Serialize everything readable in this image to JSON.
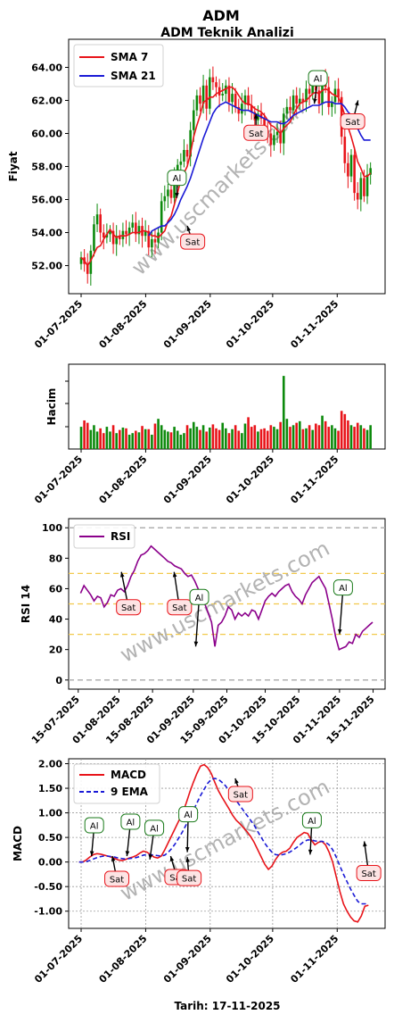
{
  "header": {
    "title": "ADM",
    "subtitle": "ADM Teknik Analizi",
    "footer": "Tarih: 17-11-2025"
  },
  "watermark": "www.uscmarkets.com",
  "colors": {
    "sma7": "#e8141a",
    "sma21": "#1a1ad6",
    "up": "#0d8a0d",
    "down": "#e8141a",
    "rsi": "#8b008b",
    "macd": "#e8141a",
    "ema9": "#1a1ad6",
    "buy_border": "#1a7a1a",
    "sell_border": "#e8141a"
  },
  "chart_data": [
    {
      "type": "line",
      "panel": "price",
      "ylabel": "Fiyat",
      "x_ticks": [
        "01-07-2025",
        "01-08-2025",
        "01-09-2025",
        "01-10-2025",
        "01-11-2025"
      ],
      "y_ticks": [
        "52.00",
        "54.00",
        "56.00",
        "58.00",
        "60.00",
        "62.00",
        "64.00"
      ],
      "ylim": [
        50.3,
        65.7
      ],
      "xlim_days": [
        -6,
        146
      ],
      "legend": [
        "SMA 7",
        "SMA 21"
      ],
      "legend_position": "top-left",
      "close": [
        52.5,
        52.1,
        51.5,
        52.9,
        54.5,
        55.1,
        54.0,
        53.7,
        53.9,
        54.1,
        53.3,
        53.8,
        53.6,
        54.1,
        53.9,
        54.3,
        54.6,
        53.9,
        54.4,
        53.8,
        54.1,
        53.1,
        53.6,
        53.4,
        54.0,
        55.9,
        56.2,
        56.6,
        56.1,
        57.3,
        58.1,
        58.3,
        59.0,
        58.6,
        60.2,
        61.4,
        62.3,
        61.8,
        62.9,
        61.5,
        63.4,
        63.1,
        62.8,
        62.3,
        62.4,
        62.9,
        61.9,
        62.4,
        61.6,
        61.2,
        61.8,
        62.3,
        61.7,
        61.3,
        60.8,
        61.2,
        60.9,
        60.2,
        60.0,
        59.3,
        59.9,
        60.1,
        59.4,
        61.2,
        61.6,
        61.4,
        62.3,
        61.8,
        62.1,
        61.9,
        62.7,
        62.4,
        63.1,
        62.6,
        61.8,
        63.4,
        62.8,
        61.6,
        61.9,
        62.7,
        62.2,
        59.8,
        58.2,
        57.4,
        58.7,
        56.4,
        56.0,
        57.3,
        56.2,
        57.5,
        57.9
      ],
      "series": [
        {
          "name": "SMA 7",
          "values": [
            52.5,
            52.3,
            52.0,
            52.3,
            52.7,
            53.1,
            53.2,
            53.6,
            53.9,
            54.2,
            53.9,
            53.7,
            53.8,
            53.8,
            53.8,
            53.9,
            54.0,
            54.0,
            54.0,
            54.1,
            54.1,
            54.0,
            53.8,
            53.8,
            53.7,
            53.9,
            54.1,
            54.7,
            55.0,
            55.7,
            56.4,
            57.2,
            57.6,
            58.0,
            58.8,
            59.8,
            60.5,
            61.1,
            61.9,
            62.0,
            62.2,
            62.2,
            62.4,
            62.5,
            62.6,
            62.7,
            62.8,
            62.8,
            62.6,
            62.3,
            62.0,
            61.8,
            61.8,
            61.7,
            61.5,
            61.4,
            61.3,
            61.1,
            60.8,
            60.5,
            60.4,
            60.2,
            60.0,
            60.3,
            60.5,
            60.7,
            61.1,
            61.5,
            61.8,
            61.9,
            62.0,
            62.2,
            62.4,
            62.5,
            62.4,
            62.6,
            62.7,
            62.6,
            62.4,
            62.3,
            62.2,
            61.7,
            61.1,
            60.4,
            59.8,
            59.1,
            58.3,
            57.9,
            57.4,
            57.4,
            57.6
          ]
        },
        {
          "name": "SMA 21",
          "values": [
            null,
            null,
            null,
            null,
            null,
            null,
            null,
            null,
            null,
            null,
            null,
            null,
            null,
            null,
            null,
            null,
            null,
            null,
            null,
            null,
            null,
            53.8,
            54.1,
            54.2,
            54.3,
            54.4,
            54.4,
            54.6,
            54.8,
            55.1,
            55.5,
            56.0,
            56.4,
            56.8,
            57.3,
            57.9,
            58.5,
            59.1,
            59.7,
            60.2,
            60.7,
            61.2,
            61.5,
            61.7,
            61.8,
            61.9,
            61.8,
            61.7,
            61.6,
            61.5,
            61.4,
            61.4,
            61.4,
            61.3,
            61.2,
            61.1,
            61.0,
            60.9,
            60.8,
            60.7,
            60.7,
            60.7,
            60.6,
            60.6,
            60.7,
            60.9,
            61.1,
            61.2,
            61.3,
            61.4,
            61.5,
            61.6,
            61.7,
            61.7,
            61.7,
            61.8,
            61.9,
            61.9,
            61.9,
            61.8,
            61.8,
            61.8,
            61.6,
            61.3,
            61.1,
            60.7,
            60.3,
            59.9,
            59.6,
            59.6,
            59.6
          ]
        }
      ],
      "annotations": [
        {
          "text": "Al",
          "x_day": 46,
          "y": 56.1
        },
        {
          "text": "Sat",
          "x_day": 51,
          "y": 54.4
        },
        {
          "text": "Sat",
          "x_day": 84,
          "y": 61.2
        },
        {
          "text": "Al",
          "x_day": 112,
          "y": 61.8
        },
        {
          "text": "Sat",
          "x_day": 133,
          "y": 62.0
        }
      ]
    },
    {
      "type": "bar",
      "panel": "volume",
      "ylabel": "Hacim",
      "x_ticks": [
        "01-07-2025",
        "01-08-2025",
        "01-09-2025",
        "01-10-2025",
        "01-11-2025"
      ],
      "values": [
        0.28,
        0.36,
        0.33,
        0.24,
        0.3,
        0.22,
        0.26,
        0.2,
        0.28,
        0.22,
        0.3,
        0.2,
        0.24,
        0.27,
        0.26,
        0.18,
        0.2,
        0.23,
        0.21,
        0.29,
        0.25,
        0.25,
        0.18,
        0.32,
        0.38,
        0.3,
        0.24,
        0.22,
        0.21,
        0.28,
        0.23,
        0.18,
        0.2,
        0.3,
        0.26,
        0.34,
        0.28,
        0.24,
        0.3,
        0.22,
        0.27,
        0.31,
        0.26,
        0.24,
        0.33,
        0.26,
        0.2,
        0.25,
        0.3,
        0.23,
        0.2,
        0.32,
        0.4,
        0.28,
        0.3,
        0.22,
        0.25,
        0.26,
        0.23,
        0.3,
        0.28,
        0.25,
        0.34,
        0.92,
        0.38,
        0.28,
        0.3,
        0.33,
        0.35,
        0.25,
        0.26,
        0.3,
        0.24,
        0.32,
        0.3,
        0.42,
        0.35,
        0.28,
        0.3,
        0.26,
        0.23,
        0.48,
        0.44,
        0.36,
        0.3,
        0.28,
        0.33,
        0.3,
        0.26,
        0.24,
        0.3
      ]
    },
    {
      "type": "line",
      "panel": "rsi",
      "ylabel": "RSI 14",
      "x_ticks": [
        "15-07-2025",
        "01-08-2025",
        "15-08-2025",
        "01-09-2025",
        "15-09-2025",
        "01-10-2025",
        "15-10-2025",
        "01-11-2025",
        "15-11-2025"
      ],
      "y_ticks": [
        "0",
        "20",
        "40",
        "60",
        "80",
        "100"
      ],
      "ylim": [
        -6,
        106
      ],
      "levels": [
        30,
        50,
        70
      ],
      "legend": [
        "RSI"
      ],
      "legend_position": "top-left",
      "series": [
        {
          "name": "RSI",
          "start_day": 15,
          "values": [
            57,
            62,
            59,
            56,
            52,
            55,
            54,
            48,
            51,
            56,
            55,
            59,
            60,
            58,
            62,
            68,
            72,
            78,
            82,
            83,
            85,
            88,
            86,
            84,
            82,
            80,
            78,
            77,
            75,
            74,
            73,
            70,
            68,
            69,
            65,
            60,
            55,
            50,
            44,
            38,
            22,
            36,
            38,
            42,
            48,
            46,
            40,
            44,
            42,
            44,
            42,
            46,
            45,
            40,
            46,
            52,
            55,
            57,
            55,
            58,
            60,
            62,
            63,
            58,
            55,
            53,
            50,
            56,
            60,
            64,
            66,
            68,
            64,
            60,
            50,
            40,
            28,
            20,
            21,
            22,
            25,
            24,
            30,
            28,
            32,
            34,
            36,
            38
          ]
        }
      ],
      "annotations": [
        {
          "text": "Sat",
          "x_day": 32,
          "y": 71
        },
        {
          "text": "Sat",
          "x_day": 54,
          "y": 71
        },
        {
          "text": "Al",
          "x_day": 63,
          "y": 22
        },
        {
          "text": "Al",
          "x_day": 123,
          "y": 30
        }
      ]
    },
    {
      "type": "line",
      "panel": "macd",
      "ylabel": "MACD",
      "xlabel": "Tarih: 17-11-2025",
      "x_ticks": [
        "01-07-2025",
        "01-08-2025",
        "01-09-2025",
        "01-10-2025",
        "01-11-2025"
      ],
      "y_ticks": [
        "-1.00",
        "-0.50",
        "0.00",
        "0.50",
        "1.00",
        "1.50",
        "2.00"
      ],
      "ylim": [
        -1.35,
        2.1
      ],
      "legend": [
        "MACD",
        "9 EMA"
      ],
      "legend_position": "top-left",
      "series": [
        {
          "name": "MACD",
          "values": [
            0.0,
            0.0,
            0.04,
            0.1,
            0.15,
            0.17,
            0.16,
            0.14,
            0.12,
            0.1,
            0.07,
            0.04,
            0.03,
            0.05,
            0.08,
            0.1,
            0.13,
            0.18,
            0.22,
            0.2,
            0.15,
            0.1,
            0.08,
            0.12,
            0.25,
            0.4,
            0.55,
            0.7,
            0.85,
            1.0,
            1.2,
            1.42,
            1.62,
            1.8,
            1.95,
            1.98,
            1.92,
            1.8,
            1.62,
            1.45,
            1.32,
            1.2,
            1.08,
            0.95,
            0.85,
            0.78,
            0.7,
            0.62,
            0.52,
            0.4,
            0.25,
            0.1,
            -0.05,
            -0.15,
            -0.08,
            0.05,
            0.15,
            0.2,
            0.22,
            0.28,
            0.4,
            0.5,
            0.55,
            0.6,
            0.58,
            0.45,
            0.35,
            0.4,
            0.42,
            0.35,
            0.2,
            0.0,
            -0.3,
            -0.6,
            -0.85,
            -1.0,
            -1.12,
            -1.2,
            -1.22,
            -1.1,
            -0.9,
            -0.88
          ]
        },
        {
          "name": "9 EMA",
          "values": [
            0.0,
            0.0,
            0.01,
            0.03,
            0.06,
            0.09,
            0.11,
            0.12,
            0.12,
            0.11,
            0.1,
            0.08,
            0.07,
            0.06,
            0.07,
            0.08,
            0.09,
            0.11,
            0.14,
            0.15,
            0.15,
            0.14,
            0.13,
            0.12,
            0.14,
            0.2,
            0.28,
            0.38,
            0.5,
            0.62,
            0.76,
            0.9,
            1.05,
            1.2,
            1.35,
            1.48,
            1.6,
            1.68,
            1.7,
            1.68,
            1.62,
            1.55,
            1.45,
            1.35,
            1.25,
            1.15,
            1.05,
            0.95,
            0.85,
            0.75,
            0.62,
            0.5,
            0.38,
            0.28,
            0.2,
            0.15,
            0.14,
            0.15,
            0.17,
            0.2,
            0.25,
            0.3,
            0.36,
            0.42,
            0.45,
            0.45,
            0.43,
            0.42,
            0.42,
            0.4,
            0.35,
            0.25,
            0.1,
            -0.08,
            -0.25,
            -0.4,
            -0.55,
            -0.68,
            -0.8,
            -0.85,
            -0.85,
            -0.85
          ]
        }
      ],
      "annotations": [
        {
          "text": "Al",
          "x_day": 5,
          "y": 0.12
        },
        {
          "text": "Sat",
          "x_day": 15,
          "y": 0.12
        },
        {
          "text": "Al",
          "x_day": 22,
          "y": 0.12
        },
        {
          "text": "Al",
          "x_day": 33,
          "y": 0.05
        },
        {
          "text": "Sat",
          "x_day": 43,
          "y": 0.12
        },
        {
          "text": "Al",
          "x_day": 51,
          "y": 0.2
        },
        {
          "text": "Sat",
          "x_day": 51,
          "y": 0.1
        },
        {
          "text": "Sat",
          "x_day": 74,
          "y": 1.7
        },
        {
          "text": "Al",
          "x_day": 110,
          "y": 0.15
        },
        {
          "text": "Sat",
          "x_day": 136,
          "y": 0.42
        }
      ]
    }
  ]
}
